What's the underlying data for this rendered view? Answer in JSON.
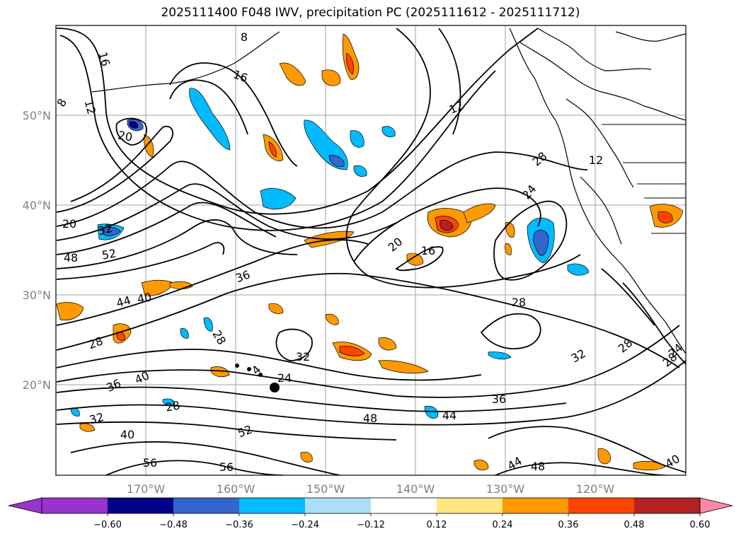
{
  "title": "2025111400 F048 IWV, precipitation PC (2025111612 - 2025111712)",
  "map": {
    "lat_labels": [
      "50°N",
      "40°N",
      "30°N",
      "20°N"
    ],
    "lon_labels": [
      "170°W",
      "160°W",
      "150°W",
      "140°W",
      "130°W",
      "120°W"
    ],
    "grid": true
  },
  "contour_labels": [
    "16",
    "12",
    "16",
    "8",
    "8",
    "20",
    "20",
    "32",
    "48",
    "52",
    "36",
    "44",
    "40",
    "28",
    "28",
    "36",
    "40",
    "32",
    "28",
    "40",
    "24",
    "32",
    "52",
    "48",
    "56",
    "56",
    "44",
    "36",
    "28",
    "20",
    "16",
    "12",
    "12",
    "28",
    "24",
    "28",
    "28",
    "32",
    "24",
    "44",
    "48",
    "40",
    "4"
  ],
  "colorbar": {
    "colors": [
      "#9933cc",
      "#3333cc",
      "#000088",
      "#3366cc",
      "#00bbff",
      "#aadff5",
      "#ffffff",
      "#ffe680",
      "#ff9900",
      "#ff4400",
      "#b22222",
      "#ff88aa"
    ],
    "tick_labels": [
      "−0.60",
      "−0.48",
      "−0.36",
      "−0.24",
      "−0.12",
      "0.12",
      "0.24",
      "0.36",
      "0.48",
      "0.60"
    ]
  }
}
